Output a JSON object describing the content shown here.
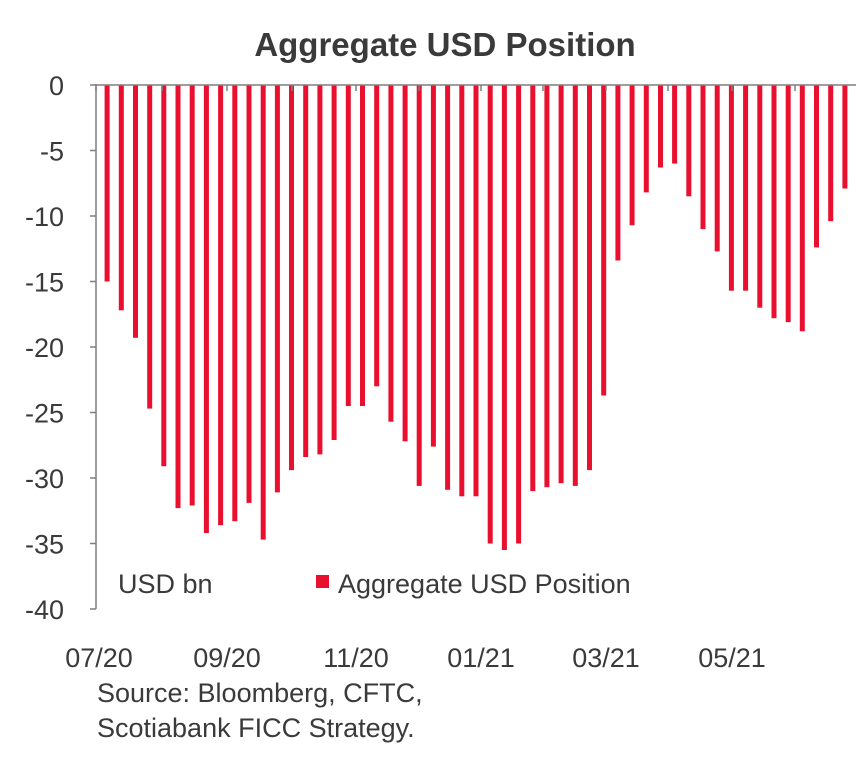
{
  "chart_data": {
    "type": "bar",
    "title": "Aggregate USD Position",
    "unit_label": "USD bn",
    "xlabel": "",
    "ylabel": "",
    "ylim": [
      -40,
      0
    ],
    "yticks": [
      0,
      -5,
      -10,
      -15,
      -20,
      -25,
      -30,
      -35,
      -40
    ],
    "xtick_labels": [
      "07/20",
      "09/20",
      "11/20",
      "01/21",
      "03/21",
      "05/21"
    ],
    "legend": "bottom-right",
    "grid": false,
    "series": [
      {
        "name": "Aggregate USD Position",
        "color": "#e8102e",
        "values": [
          -15.0,
          -17.2,
          -19.3,
          -24.7,
          -29.1,
          -32.3,
          -32.1,
          -34.2,
          -33.6,
          -33.3,
          -31.9,
          -34.7,
          -31.1,
          -29.4,
          -28.4,
          -28.2,
          -27.1,
          -24.5,
          -24.5,
          -23.0,
          -25.7,
          -27.2,
          -30.6,
          -27.6,
          -30.9,
          -31.4,
          -31.4,
          -35.0,
          -35.5,
          -35.0,
          -31.0,
          -30.7,
          -30.4,
          -30.6,
          -29.4,
          -23.7,
          -13.4,
          -10.7,
          -8.2,
          -6.3,
          -6.0,
          -8.5,
          -11.0,
          -12.7,
          -15.7,
          -15.7,
          -17.0,
          -17.8,
          -18.1,
          -18.8,
          -12.4,
          -10.4,
          -7.9
        ]
      }
    ],
    "source": [
      "Source: Bloomberg, CFTC,",
      "Scotiabank FICC  Strategy."
    ]
  }
}
